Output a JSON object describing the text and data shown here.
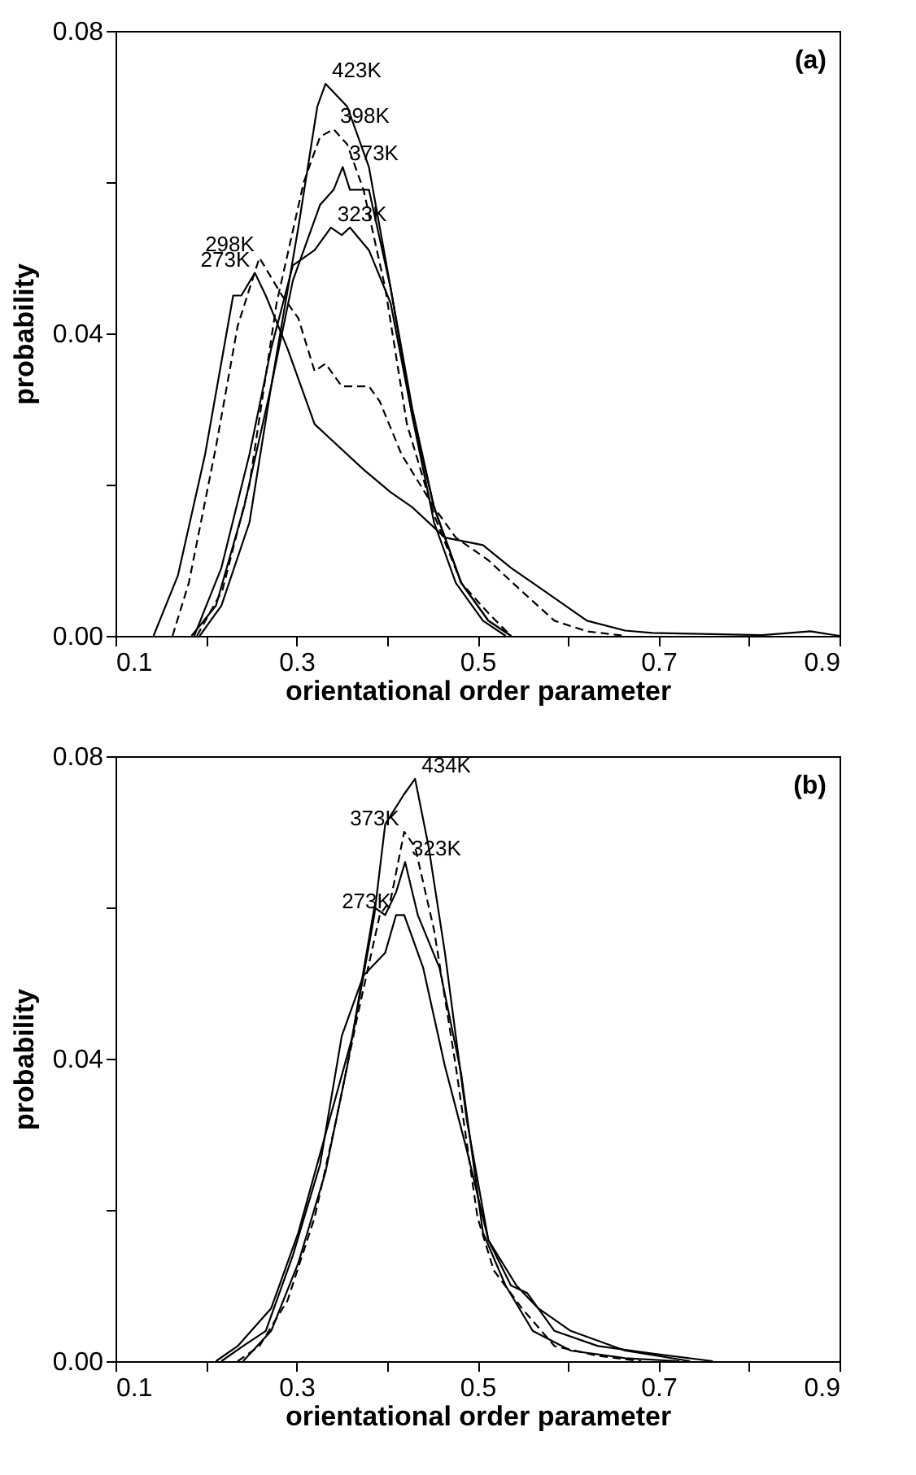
{
  "chart_data": [
    {
      "type": "line",
      "xlabel": "orientational order parameter",
      "ylabel": "probability",
      "annotations": [
        "(a)"
      ],
      "xlim": [
        0.1,
        0.9
      ],
      "ylim": [
        0,
        0.08
      ],
      "grid": false,
      "legend": false,
      "marker": "none",
      "xticks": [
        0.1,
        {
          "value": 0.2,
          "label": null
        },
        0.3,
        {
          "value": 0.4,
          "label": null
        },
        0.5,
        {
          "value": 0.6,
          "label": null
        },
        0.7,
        {
          "value": 0.8,
          "label": null
        },
        0.9
      ],
      "yticks": [
        {
          "value": 0,
          "label": "0.00"
        },
        {
          "value": 0.02,
          "label": null
        },
        {
          "value": 0.04,
          "label": "0.04"
        },
        {
          "value": 0.06,
          "label": null
        },
        {
          "value": 0.08,
          "label": "0.08"
        }
      ],
      "series": [
        {
          "name": "423K",
          "color": "#000000",
          "line_style": "solid",
          "x": [
            0.184,
            0.211,
            0.242,
            0.272,
            0.302,
            0.323,
            0.332,
            0.356,
            0.38,
            0.404,
            0.428,
            0.452,
            0.476,
            0.506,
            0.531
          ],
          "values": [
            0,
            0.004,
            0.017,
            0.033,
            0.054,
            0.07,
            0.073,
            0.07,
            0.062,
            0.046,
            0.029,
            0.015,
            0.007,
            0.002,
            0
          ]
        },
        {
          "name": "398K",
          "color": "#000000",
          "line_style": "dashed",
          "x": [
            0.19,
            0.218,
            0.248,
            0.278,
            0.308,
            0.326,
            0.341,
            0.356,
            0.374,
            0.398,
            0.422,
            0.452,
            0.482,
            0.512,
            0.537
          ],
          "values": [
            0,
            0.006,
            0.02,
            0.044,
            0.06,
            0.066,
            0.067,
            0.065,
            0.059,
            0.046,
            0.028,
            0.016,
            0.007,
            0.003,
            0
          ]
        },
        {
          "name": "373K",
          "color": "#000000",
          "line_style": "solid",
          "x": [
            0.193,
            0.217,
            0.248,
            0.272,
            0.296,
            0.326,
            0.341,
            0.351,
            0.359,
            0.38,
            0.404,
            0.428,
            0.452,
            0.482,
            0.512,
            0.537
          ],
          "values": [
            0,
            0.004,
            0.015,
            0.033,
            0.047,
            0.057,
            0.059,
            0.062,
            0.059,
            0.059,
            0.046,
            0.03,
            0.017,
            0.007,
            0.002,
            0
          ]
        },
        {
          "name": "323K",
          "color": "#000000",
          "line_style": "solid",
          "x": [
            0.187,
            0.217,
            0.248,
            0.272,
            0.296,
            0.32,
            0.338,
            0.35,
            0.359,
            0.38,
            0.404,
            0.428,
            0.452,
            0.482,
            0.512,
            0.537
          ],
          "values": [
            0,
            0.009,
            0.024,
            0.038,
            0.049,
            0.051,
            0.054,
            0.053,
            0.054,
            0.051,
            0.044,
            0.029,
            0.017,
            0.007,
            0.002,
            0
          ]
        },
        {
          "name": "298K",
          "color": "#000000",
          "line_style": "dashed",
          "x": [
            0.163,
            0.181,
            0.211,
            0.235,
            0.259,
            0.284,
            0.302,
            0.32,
            0.332,
            0.35,
            0.38,
            0.392,
            0.416,
            0.452,
            0.476,
            0.512,
            0.548,
            0.585,
            0.621,
            0.663
          ],
          "values": [
            0,
            0.007,
            0.025,
            0.041,
            0.05,
            0.045,
            0.042,
            0.035,
            0.036,
            0.033,
            0.033,
            0.031,
            0.024,
            0.017,
            0.013,
            0.01,
            0.006,
            0.002,
            0.0006,
            0
          ]
        },
        {
          "name": "273K",
          "color": "#000000",
          "line_style": "solid",
          "x": [
            0.142,
            0.169,
            0.199,
            0.23,
            0.239,
            0.254,
            0.266,
            0.29,
            0.32,
            0.338,
            0.374,
            0.404,
            0.428,
            0.464,
            0.506,
            0.537,
            0.573,
            0.621,
            0.663,
            0.693,
            0.814,
            0.868,
            0.9
          ],
          "values": [
            0,
            0.008,
            0.024,
            0.045,
            0.045,
            0.048,
            0.045,
            0.038,
            0.028,
            0.026,
            0.022,
            0.019,
            0.017,
            0.013,
            0.012,
            0.009,
            0.006,
            0.002,
            0.0007,
            0.0004,
            0.0001,
            0.0006,
            0
          ]
        }
      ]
    },
    {
      "type": "line",
      "xlabel": "orientational order parameter",
      "ylabel": "probability",
      "annotations": [
        "(b)"
      ],
      "xlim": [
        0.1,
        0.9
      ],
      "ylim": [
        0,
        0.08
      ],
      "grid": false,
      "legend": false,
      "marker": "none",
      "xticks": [
        0.1,
        {
          "value": 0.2,
          "label": null
        },
        0.3,
        {
          "value": 0.4,
          "label": null
        },
        0.5,
        {
          "value": 0.6,
          "label": null
        },
        0.7,
        {
          "value": 0.8,
          "label": null
        },
        0.9
      ],
      "yticks": [
        {
          "value": 0,
          "label": "0.00"
        },
        {
          "value": 0.02,
          "label": null
        },
        {
          "value": 0.04,
          "label": "0.04"
        },
        {
          "value": 0.06,
          "label": null
        },
        {
          "value": 0.08,
          "label": "0.08"
        }
      ],
      "series": [
        {
          "name": "434K",
          "color": "#000000",
          "line_style": "solid",
          "x": [
            0.211,
            0.235,
            0.272,
            0.302,
            0.332,
            0.362,
            0.386,
            0.398,
            0.419,
            0.431,
            0.446,
            0.464,
            0.488,
            0.512,
            0.537,
            0.555,
            0.585,
            0.633,
            0.693,
            0.76
          ],
          "values": [
            0,
            0.002,
            0.007,
            0.017,
            0.03,
            0.043,
            0.059,
            0.071,
            0.075,
            0.077,
            0.068,
            0.054,
            0.032,
            0.016,
            0.01,
            0.009,
            0.004,
            0.002,
            0.001,
            0
          ]
        },
        {
          "name": "373K",
          "color": "#000000",
          "line_style": "dashed",
          "x": [
            0.235,
            0.259,
            0.29,
            0.32,
            0.344,
            0.368,
            0.392,
            0.404,
            0.419,
            0.431,
            0.452,
            0.476,
            0.5,
            0.518,
            0.549,
            0.585,
            0.633,
            0.681
          ],
          "values": [
            0,
            0.002,
            0.008,
            0.019,
            0.032,
            0.046,
            0.059,
            0.061,
            0.07,
            0.068,
            0.057,
            0.039,
            0.019,
            0.012,
            0.007,
            0.002,
            0.0007,
            0
          ]
        },
        {
          "name": "323K",
          "color": "#000000",
          "line_style": "solid",
          "x": [
            0.241,
            0.272,
            0.302,
            0.332,
            0.356,
            0.386,
            0.398,
            0.41,
            0.42,
            0.434,
            0.458,
            0.482,
            0.506,
            0.531,
            0.561,
            0.603,
            0.663,
            0.723
          ],
          "values": [
            0,
            0.004,
            0.013,
            0.025,
            0.039,
            0.06,
            0.059,
            0.062,
            0.066,
            0.059,
            0.052,
            0.038,
            0.017,
            0.01,
            0.004,
            0.0014,
            0.0004,
            0
          ]
        },
        {
          "name": "273K",
          "color": "#000000",
          "line_style": "solid",
          "x": [
            0.217,
            0.241,
            0.266,
            0.296,
            0.326,
            0.35,
            0.374,
            0.398,
            0.41,
            0.419,
            0.44,
            0.464,
            0.488,
            0.512,
            0.543,
            0.567,
            0.603,
            0.663,
            0.735
          ],
          "values": [
            0,
            0.002,
            0.004,
            0.014,
            0.026,
            0.043,
            0.051,
            0.054,
            0.059,
            0.059,
            0.052,
            0.039,
            0.028,
            0.016,
            0.01,
            0.007,
            0.004,
            0.0014,
            0
          ]
        }
      ]
    }
  ]
}
